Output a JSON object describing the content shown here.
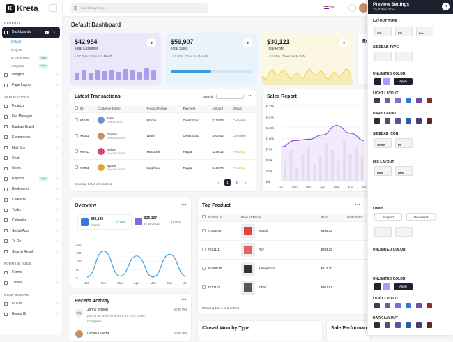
{
  "app": {
    "name": "Kreta",
    "logo_letter": "K"
  },
  "topbar": {
    "search_placeholder": "Search anything...",
    "lang": "EN"
  },
  "sidebar": {
    "general": "GENERAL",
    "dashboards": "Dashboards",
    "dash_count": "4",
    "subs": [
      {
        "label": "Default",
        "active": true
      },
      {
        "label": "Projects"
      },
      {
        "label": "E-Commerce",
        "badge": "New"
      },
      {
        "label": "Analytics",
        "badge": "New"
      }
    ],
    "general_items": [
      "Widgets",
      "Page Layout"
    ],
    "applications": "APPLICATIONS",
    "app_items": [
      "Projects",
      "File Manager",
      "Kanban Board",
      "Ecommerce",
      "Mail Box",
      "Chat",
      "Users",
      "Reports",
      "Bookmarks",
      "Contacts",
      "Tasks",
      "Calendar",
      "Social App",
      "To-Do",
      "Search Result"
    ],
    "reports_badge": "New",
    "forms": "FORMS & TABLE",
    "form_items": [
      "Forms",
      "Tables"
    ],
    "components": "COMPONENTS",
    "comp_items": [
      "Ui Kits",
      "Bonus Ui"
    ]
  },
  "page_title": "Default Dashboard",
  "stats": [
    {
      "value": "$42,954",
      "label": "Total Customer",
      "change": "+ 17.06%",
      "note": "Grow in 6 Month",
      "up": true,
      "color": "#ebe8fb"
    },
    {
      "value": "$59,907",
      "label": "Total Sales",
      "change": "- 24.02%",
      "note": "Grow in 6 Month",
      "up": false,
      "color": "#e8f3fb"
    },
    {
      "value": "$30,121",
      "label": "Total Profit",
      "change": "+ 12.01%",
      "note": "Grow in 6 Month",
      "up": true,
      "color": "#fbf7e2"
    }
  ],
  "partial_card": {
    "title": "Re"
  },
  "transactions": {
    "title": "Latest Transactions",
    "search_label": "Search:",
    "headers": [
      "ID",
      "Customer Name",
      "Product Name",
      "Payment",
      "Amount",
      "Status"
    ],
    "rows": [
      {
        "id": "#1245",
        "name": "Jane",
        "date": "Feb 12,2025",
        "product": "iPhone",
        "payment": "Credit Card",
        "amount": "$120.03",
        "status": "Complete"
      },
      {
        "id": "#K011",
        "name": "Gordon",
        "date": "Feb 12th,2025",
        "product": "Watch",
        "payment": "Credit Card",
        "amount": "$400.02",
        "status": "Complete"
      },
      {
        "id": "#KH12",
        "name": "Nelson",
        "date": "Feb 12th,2025",
        "product": "MacBook",
        "payment": "Paypal",
        "amount": "$256.12",
        "status": "Pending"
      },
      {
        "id": "#KT11",
        "name": "Nyami",
        "date": "Feb 12th,2025",
        "product": "Earphone",
        "payment": "Paypal",
        "amount": "$400.78",
        "status": "Pending"
      }
    ],
    "footer": "Showing 1 to 4 of 8 entries",
    "pages": [
      "1",
      "2"
    ]
  },
  "sales_report": {
    "title": "Sales Report"
  },
  "overview": {
    "title": "Overview",
    "income_val": "$45,195",
    "income_label": "Income",
    "income_change": "+ 17.06%",
    "cust_val": "$25,107",
    "cust_label": "Customers",
    "cust_change": "+ 17.06%"
  },
  "top_product": {
    "title": "Top Product",
    "headers": [
      "Product Id",
      "Product Name",
      "Price",
      "Units Sold"
    ],
    "rows": [
      {
        "id": "#1345GH",
        "name": "Watch",
        "price": "$399.02"
      },
      {
        "id": "#K01111",
        "name": "Toy",
        "price": "$203.11"
      },
      {
        "id": "#KHUN15",
        "name": "Headphone",
        "price": "$512.20"
      },
      {
        "id": "#KT1107",
        "name": "Chair",
        "price": "$901.01"
      }
    ],
    "footer": "Showing 1 to 4 of 8 entries"
  },
  "activity": {
    "title": "Recent Activity",
    "items": [
      {
        "initials": "JW",
        "name": "Jenny Wilson",
        "time": "10:30 PM",
        "desc": "placed an order for iPhone 15 Pro - Order",
        "status": "Completed"
      },
      {
        "initials": "",
        "name": "Lucille Guerra",
        "time": "10:30 PM",
        "desc": "",
        "status": ""
      }
    ]
  },
  "bottom_cards": [
    "Closed Won by Type",
    "Sale Performan"
  ],
  "chart_data": [
    {
      "type": "line",
      "title": "Sales Report",
      "categories": [
        "Jan",
        "Feb",
        "Mar",
        "Apr",
        "May",
        "Jun",
        "Jul"
      ],
      "yticks": [
        "$175k",
        "$150k",
        "$125k",
        "$100k",
        "$75k",
        "$50k",
        "$25k",
        "$0k"
      ],
      "series": [
        {
          "values": [
            80,
            95,
            98,
            108,
            130,
            112,
            95
          ]
        }
      ]
    },
    {
      "type": "line",
      "title": "Overview",
      "categories": [
        "Jan",
        "Feb",
        "Mar",
        "Apr",
        "May",
        "Jun",
        "Jul"
      ],
      "yticks": [
        "200",
        "150",
        "100",
        "50",
        "0"
      ],
      "series": [
        {
          "values": [
            5,
            160,
            10,
            130,
            5,
            140,
            10
          ]
        }
      ]
    }
  ],
  "panel": {
    "title": "Preview Settings",
    "subtitle": "Try It Real Time",
    "layout_type": "LAYOUT TYPE",
    "layout_opts": [
      "LTR",
      "RTL",
      "Box"
    ],
    "sidebar_type": "SIDEBAR TYPE",
    "unlimited": "UNLIMITED COLOR",
    "apply": "Apply",
    "light": "LIGHT LAYOUT",
    "dark": "DARK LAYOUT",
    "sidebar_icon": "SIDEBAR ICON",
    "icon_opts": [
      "Stroke",
      "Fill"
    ],
    "mix": "MIX LAYOUT",
    "mix_opts": [
      "Light",
      "Dark"
    ],
    "links": "LINKS",
    "support": "Support",
    "document": "Document",
    "unlimited2": "UNLIMITED COLOR",
    "light2": "LIGHT LAYOUT",
    "dark2": "DARK LAYOUT",
    "apply2": "Apply",
    "swatch_light": [
      "#3a3f55",
      "#5b6b8a",
      "#7a6fd0",
      "#2f7bd6",
      "#6e4fa3",
      "#8b2a3a"
    ],
    "swatch_dark": [
      "#2b2f3c",
      "#4b5466",
      "#5c4fa3",
      "#245fa8",
      "#4b3a75",
      "#5f2030"
    ]
  }
}
